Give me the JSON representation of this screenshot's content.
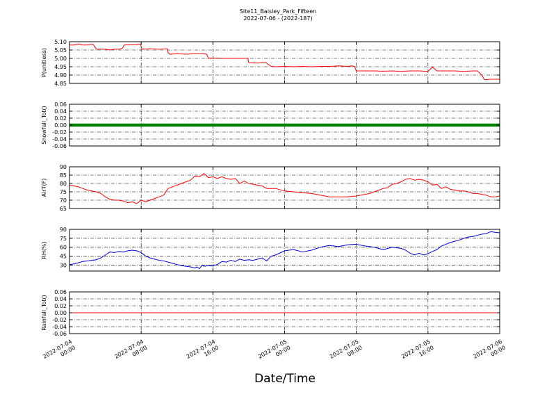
{
  "chart_data": {
    "type": "line",
    "title": "Site11_Baisley_Park_Fifteen",
    "subtitle": "2022-07-06 - (2022-187)",
    "xlabel": "Date/Time",
    "x_ticks": [
      "2022-07-04 00:00",
      "2022-07-04 08:00",
      "2022-07-04 16:00",
      "2022-07-05 00:00",
      "2022-07-05 08:00",
      "2022-07-05 16:00",
      "2022-07-06 00:00"
    ],
    "x_tick_lines": [
      [
        "2022-07-04",
        "00:00"
      ],
      [
        "2022-07-04",
        "08:00"
      ],
      [
        "2022-07-04",
        "16:00"
      ],
      [
        "2022-07-05",
        "00:00"
      ],
      [
        "2022-07-05",
        "08:00"
      ],
      [
        "2022-07-05",
        "16:00"
      ],
      [
        "2022-07-06",
        "00:00"
      ]
    ],
    "xlim_hours": [
      0,
      48
    ],
    "grid": true,
    "panels": [
      {
        "ylabel": "P(unitless)",
        "ylim": [
          4.85,
          5.1
        ],
        "yticks": [
          4.85,
          4.9,
          4.95,
          5.0,
          5.05,
          5.1
        ],
        "tick_decimals": 2,
        "color": "#ff0000",
        "series": [
          {
            "x": [
              0,
              0.5,
              1,
              1.5,
              2,
              2.5,
              2.7,
              3,
              3.5,
              4,
              4.5,
              5,
              5.5,
              5.9,
              6.1,
              6.5,
              7,
              7.5,
              7.9,
              8.1,
              9,
              10,
              10.9,
              11,
              11.2,
              12,
              13,
              14,
              15,
              15.3,
              15.5,
              16,
              17,
              18,
              19,
              19.5,
              19.9,
              20,
              21,
              21.5,
              21.9,
              22.5,
              23,
              24,
              25,
              26,
              27,
              28,
              29,
              30,
              31,
              31.5,
              31.8,
              32,
              33,
              34,
              35,
              36,
              37,
              38,
              39,
              39.8,
              40,
              40.5,
              41,
              42,
              43,
              44,
              45,
              45.5,
              45.9,
              46,
              46.3,
              47,
              48
            ],
            "y": [
              5.08,
              5.08,
              5.085,
              5.08,
              5.08,
              5.085,
              5.08,
              5.055,
              5.055,
              5.055,
              5.05,
              5.055,
              5.055,
              5.06,
              5.08,
              5.082,
              5.082,
              5.082,
              5.085,
              5.055,
              5.058,
              5.055,
              5.058,
              5.035,
              5.025,
              5.028,
              5.025,
              5.028,
              5.028,
              5.025,
              5.0,
              5.002,
              5.0,
              5.0,
              5.0,
              5.0,
              5.0,
              4.975,
              4.972,
              4.975,
              4.975,
              4.952,
              4.95,
              4.952,
              4.95,
              4.952,
              4.95,
              4.952,
              4.952,
              4.955,
              4.952,
              4.955,
              4.952,
              4.925,
              4.925,
              4.925,
              4.923,
              4.925,
              4.922,
              4.925,
              4.925,
              4.922,
              4.922,
              4.948,
              4.925,
              4.925,
              4.925,
              4.922,
              4.925,
              4.925,
              4.905,
              4.9,
              4.872,
              4.875,
              4.875
            ]
          }
        ]
      },
      {
        "ylabel": "Snowfall_Tot()",
        "ylim": [
          -0.06,
          0.06
        ],
        "yticks": [
          -0.06,
          -0.04,
          -0.02,
          0.0,
          0.02,
          0.04,
          0.06
        ],
        "tick_decimals": 2,
        "color": "#008000",
        "stroke_width": 4.5,
        "series": [
          {
            "x": [
              0,
              48
            ],
            "y": [
              0,
              0
            ]
          }
        ]
      },
      {
        "ylabel": "AirT(F)",
        "ylim": [
          65,
          90
        ],
        "yticks": [
          65,
          70,
          75,
          80,
          85,
          90
        ],
        "tick_decimals": 0,
        "color": "#ff0000",
        "series": [
          {
            "x": [
              0,
              0.5,
              1,
              1.5,
              2,
              2.5,
              3,
              3.5,
              4,
              4.5,
              5,
              5.5,
              6,
              6.5,
              7,
              7.5,
              8,
              8.5,
              9,
              9.5,
              10,
              10.5,
              11,
              11.5,
              12,
              12.5,
              13,
              13.5,
              14,
              14.5,
              15,
              15.5,
              16,
              16.5,
              17,
              17.5,
              18,
              18.5,
              19,
              19.5,
              20,
              20.5,
              21,
              21.5,
              22,
              23,
              24,
              25,
              26,
              27,
              28,
              29,
              30,
              31,
              32,
              32.5,
              33,
              33.5,
              34,
              34.5,
              35,
              35.5,
              36,
              36.5,
              37,
              37.5,
              38,
              38.5,
              39,
              39.5,
              40,
              40.5,
              41,
              41.5,
              42,
              42.5,
              43,
              43.5,
              44,
              44.5,
              45,
              45.5,
              46,
              46.5,
              47,
              47.5,
              48
            ],
            "y": [
              79,
              78.5,
              78,
              77,
              76,
              75.5,
              75,
              74,
              72,
              70.5,
              70,
              70,
              69.5,
              68.5,
              69,
              68,
              70,
              69,
              70,
              71,
              72,
              73,
              77,
              78,
              79,
              80,
              81,
              82,
              84.5,
              84,
              86,
              83.5,
              84,
              83,
              84,
              83,
              82.5,
              83,
              80,
              81.5,
              80,
              79.5,
              79,
              78.5,
              77,
              77,
              75.5,
              75,
              74.5,
              74,
              73,
              72,
              72,
              72,
              72.5,
              73,
              73.5,
              74,
              75,
              76,
              77,
              77.5,
              79.5,
              80,
              81,
              82.5,
              83,
              82,
              82.5,
              82,
              81,
              79,
              79.5,
              77,
              78,
              76.5,
              76,
              75.5,
              75.5,
              75,
              74,
              74,
              73.5,
              73,
              72,
              72,
              72.5
            ]
          }
        ]
      },
      {
        "ylabel": "RH(%)",
        "ylim": [
          20,
          90
        ],
        "yticks": [
          30,
          45,
          60,
          75,
          90
        ],
        "tick_decimals": 0,
        "color": "#0000dd",
        "series": [
          {
            "x": [
              0,
              0.5,
              1,
              1.5,
              2,
              2.5,
              3,
              3.5,
              4,
              4.5,
              5,
              5.5,
              6,
              6.5,
              7,
              7.5,
              8,
              8.5,
              9,
              9.5,
              10,
              10.5,
              11,
              11.5,
              12,
              12.5,
              13,
              13.5,
              14,
              14.2,
              14.5,
              14.8,
              15,
              15.5,
              16,
              16.5,
              17,
              17.5,
              18,
              18.5,
              19,
              19.5,
              20,
              20.5,
              21,
              21.5,
              22,
              22.5,
              23,
              24,
              25,
              26,
              27,
              28,
              29,
              30,
              31,
              32,
              33,
              34,
              35,
              36,
              37,
              37.5,
              38,
              38.5,
              39,
              39.5,
              40,
              40.5,
              41,
              41.5,
              42,
              42.5,
              43,
              43.5,
              44,
              44.5,
              45,
              45.5,
              46,
              46.5,
              47,
              47.5,
              48
            ],
            "y": [
              31,
              32,
              34,
              36,
              37,
              38,
              39,
              42,
              47,
              52,
              51,
              53,
              52,
              54,
              55,
              54,
              51,
              45,
              42,
              40,
              38,
              37,
              35,
              33,
              31,
              29,
              28,
              27,
              25,
              27,
              24,
              30,
              28,
              29,
              29,
              31,
              36,
              35,
              38,
              36,
              40,
              38,
              39,
              38,
              40,
              42,
              37,
              45,
              47,
              54,
              56,
              52,
              55,
              60,
              63,
              61,
              64,
              65,
              62,
              60,
              56,
              60,
              58,
              55,
              50,
              47,
              50,
              47,
              49,
              53,
              56,
              62,
              65,
              68,
              70,
              72,
              75,
              77,
              78,
              80,
              82,
              83,
              86,
              85,
              84
            ]
          }
        ]
      },
      {
        "ylabel": "Rainfall_Tot()",
        "ylim": [
          -0.06,
          0.06
        ],
        "yticks": [
          -0.06,
          -0.04,
          -0.02,
          0.0,
          0.02,
          0.04,
          0.06
        ],
        "tick_decimals": 2,
        "color": "#ff0000",
        "series": [
          {
            "x": [
              0,
              48
            ],
            "y": [
              0,
              0
            ]
          }
        ]
      }
    ]
  }
}
